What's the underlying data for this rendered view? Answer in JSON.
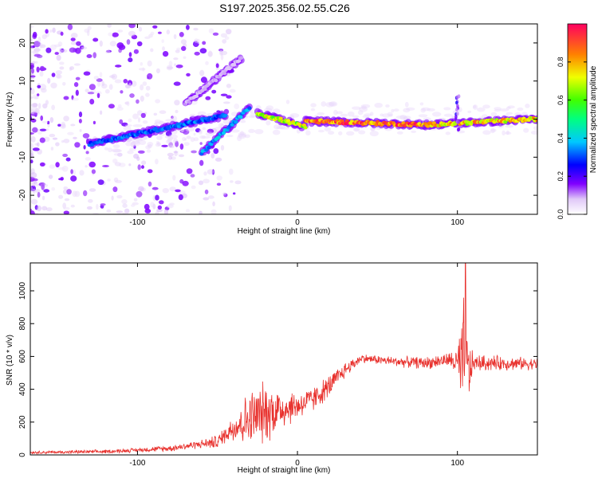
{
  "title": "S197.2025.356.02.55.C26",
  "chart_data": [
    {
      "type": "heatmap",
      "xlabel": "Height of straight line (km)",
      "ylabel": "Frequency (Hz)",
      "xlim": [
        -167,
        150
      ],
      "ylim": [
        -25,
        25
      ],
      "xticks": [
        -100,
        0,
        100
      ],
      "yticks": [
        -20,
        -10,
        0,
        10,
        20
      ],
      "colorbar": {
        "label": "Normalized spectral amplitude",
        "range": [
          0,
          1
        ],
        "ticks": [
          "0.0",
          "0.2",
          "0.4",
          "0.6",
          "0.8"
        ]
      },
      "ridge_segments": [
        {
          "from": [
            -130,
            -6.5
          ],
          "to": [
            -45,
            1
          ],
          "amp": 0.35
        },
        {
          "from": [
            -60,
            -9
          ],
          "to": [
            -30,
            3
          ],
          "amp": 0.4
        },
        {
          "from": [
            -70,
            4
          ],
          "to": [
            -35,
            16
          ],
          "amp": 0.1
        },
        {
          "from": [
            -25,
            1.5
          ],
          "to": [
            5,
            -2
          ],
          "amp": 0.75
        },
        {
          "from": [
            5,
            -0.5
          ],
          "to": [
            80,
            -1.5
          ],
          "amp": 0.95
        },
        {
          "from": [
            80,
            -1.5
          ],
          "to": [
            150,
            0
          ],
          "amp": 0.85
        }
      ]
    },
    {
      "type": "line",
      "xlabel": "Height of straight line (km)",
      "ylabel": "SNR (10 * v/v)",
      "xlim": [
        -167,
        150
      ],
      "ylim": [
        0,
        1170
      ],
      "xticks": [
        -100,
        0,
        100
      ],
      "yticks": [
        0,
        200,
        400,
        600,
        800,
        1000
      ],
      "color": "#e8302c",
      "trend": {
        "x": [
          -167,
          -120,
          -80,
          -50,
          -40,
          -30,
          -20,
          -10,
          0,
          10,
          20,
          30,
          40,
          60,
          80,
          95,
          100,
          103,
          105,
          107,
          110,
          120,
          150
        ],
        "y": [
          15,
          20,
          40,
          80,
          170,
          220,
          260,
          280,
          300,
          340,
          420,
          520,
          590,
          570,
          560,
          580,
          560,
          500,
          600,
          500,
          560,
          560,
          555
        ]
      },
      "noise_spread": {
        "x": [
          -167,
          -100,
          -60,
          -45,
          -30,
          -20,
          -10,
          0,
          20,
          40,
          60,
          95,
          100,
          104,
          106,
          110,
          150
        ],
        "y": [
          10,
          15,
          30,
          60,
          200,
          220,
          150,
          100,
          80,
          30,
          35,
          50,
          120,
          500,
          300,
          60,
          40
        ]
      },
      "peak": {
        "x": 105,
        "y": 1170
      }
    }
  ]
}
